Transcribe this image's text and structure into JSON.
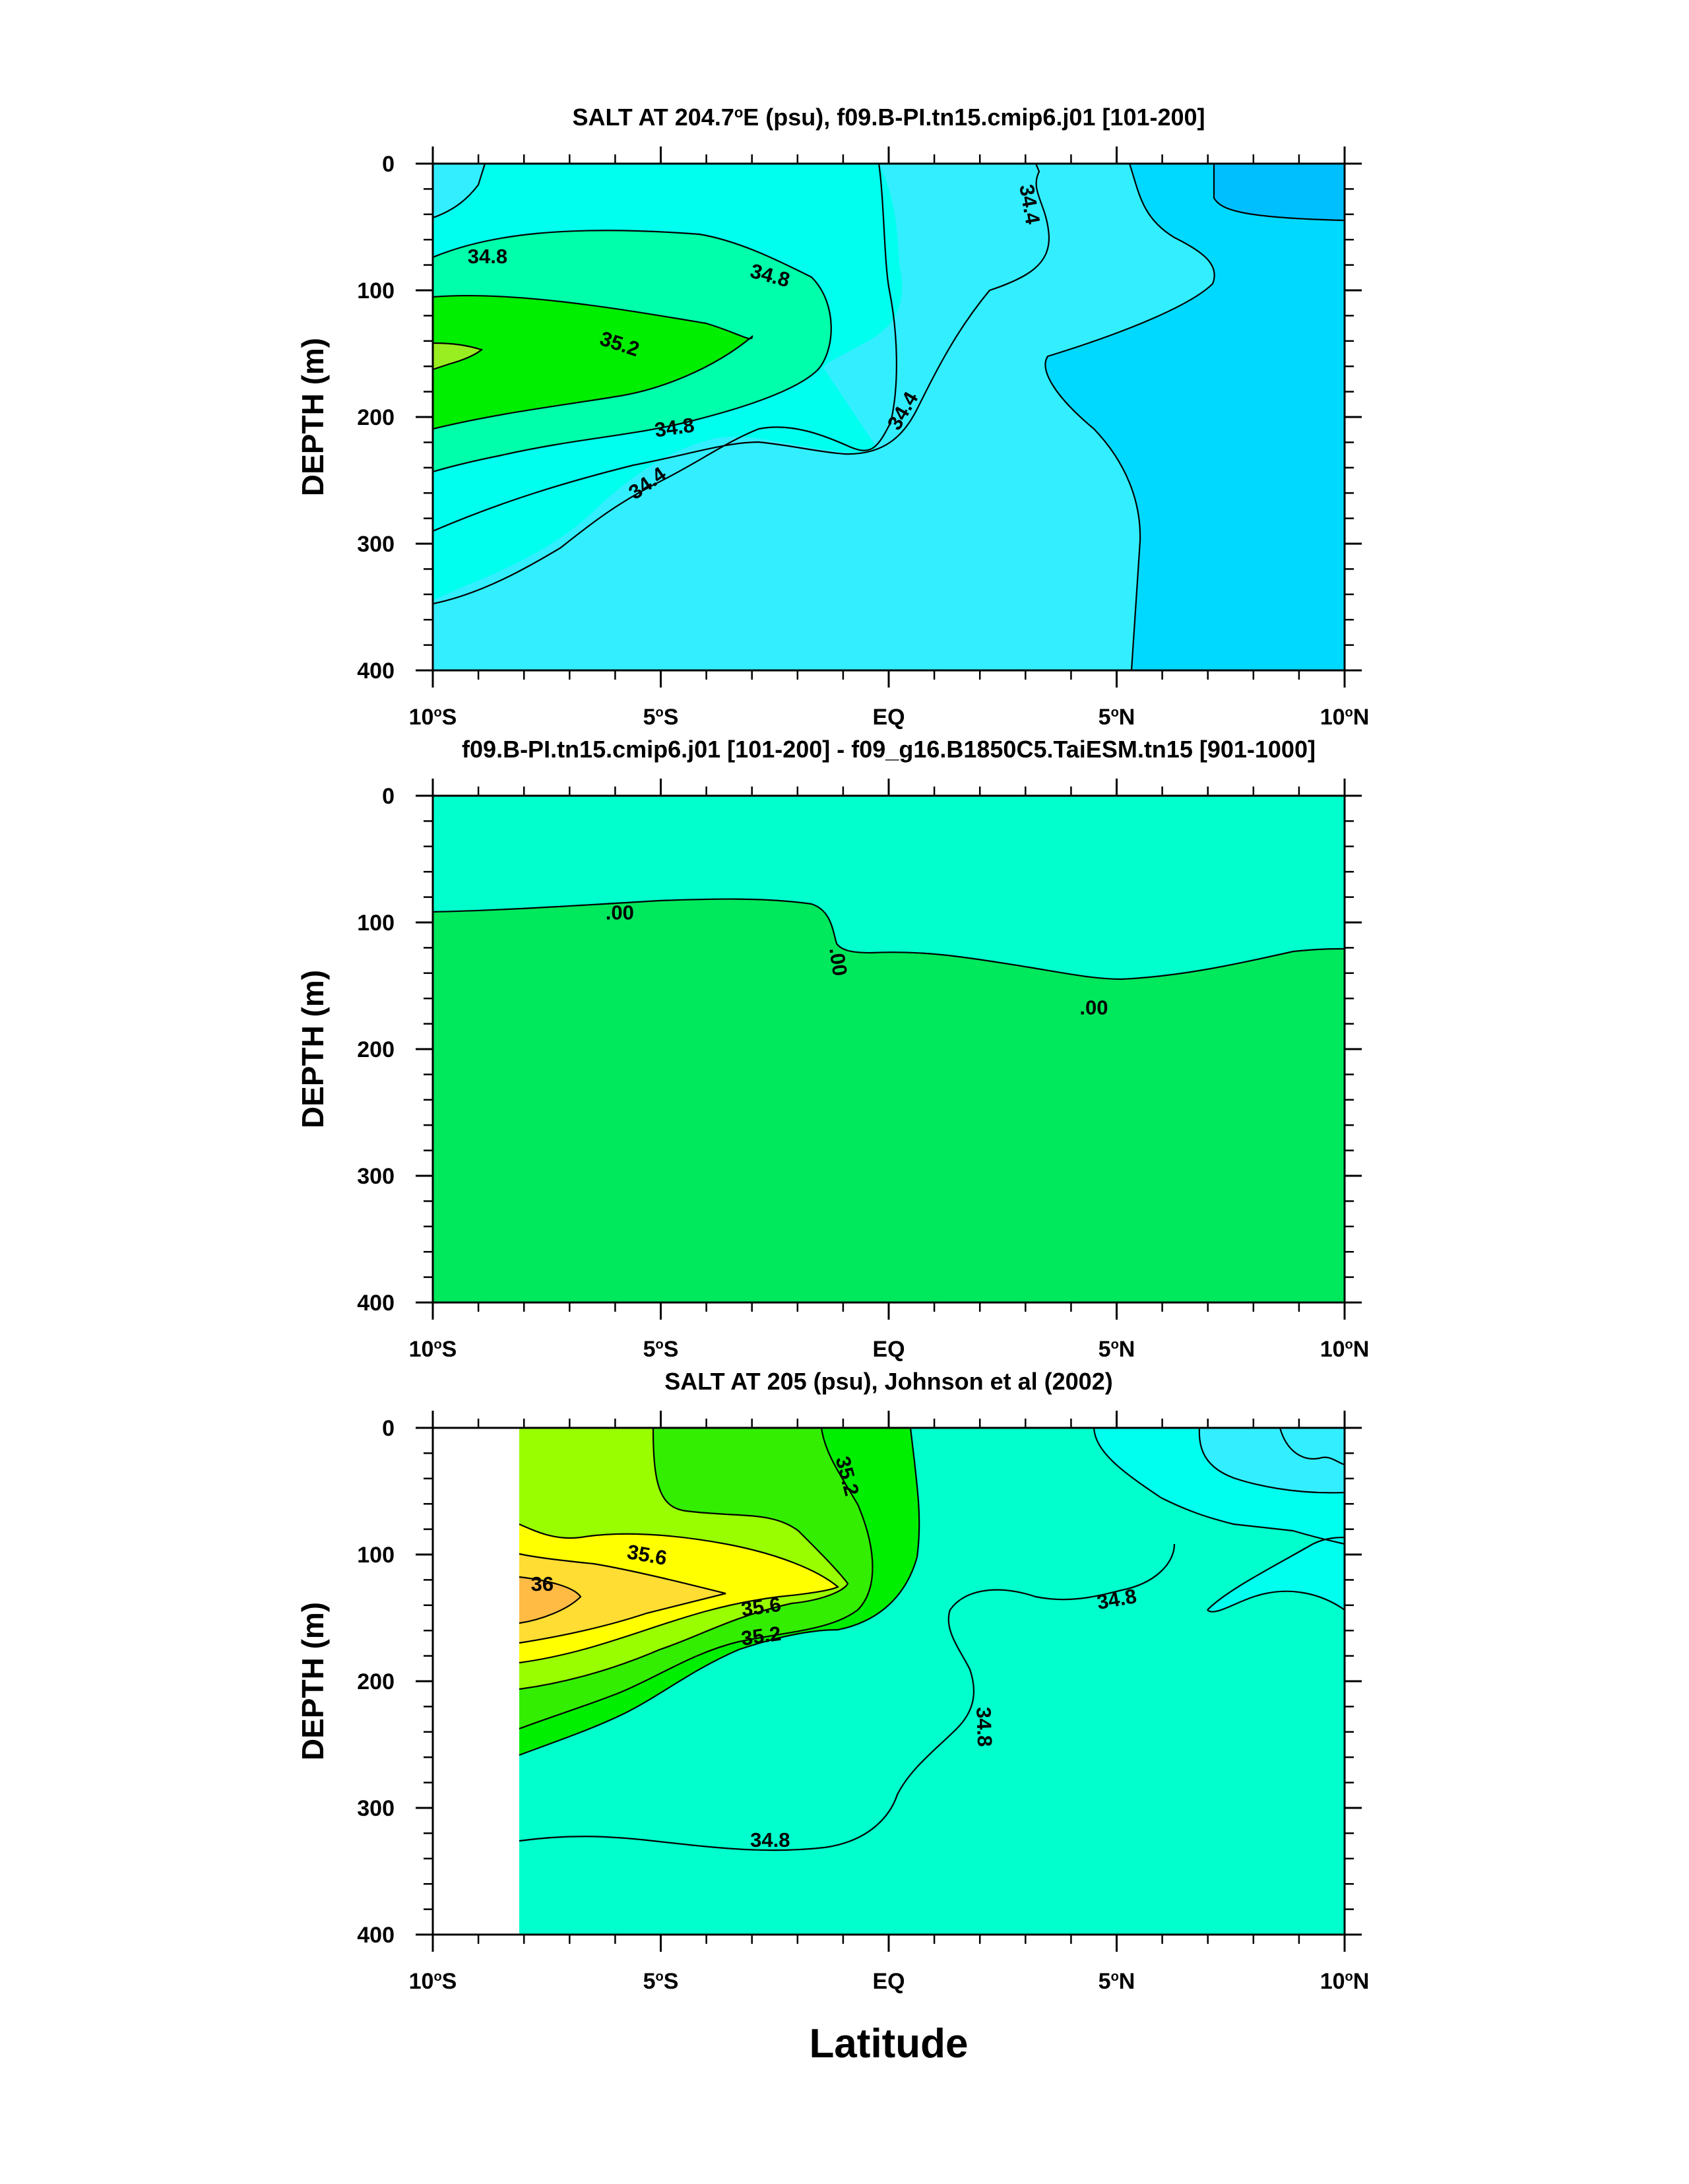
{
  "figure": {
    "xlabel": "Latitude"
  },
  "chart_data": [
    {
      "type": "contour",
      "title": "SALT AT 204.7°E (psu), f09.B-PI.tn15.cmip6.j01 [101-200]",
      "title_parts": {
        "a": "SALT AT 204.7",
        "sup": "o",
        "b": "E (psu), f09.B-PI.tn15.cmip6.j01 [101-200]"
      },
      "xlabel": "",
      "ylabel": "DEPTH (m)",
      "xlim": [
        -10,
        10
      ],
      "ylim": [
        400,
        0
      ],
      "x_ticks": [
        {
          "value": -10,
          "num": "10",
          "deg": "o",
          "hem": "S"
        },
        {
          "value": -5,
          "num": "5",
          "deg": "o",
          "hem": "S"
        },
        {
          "value": 0,
          "num": "EQ",
          "deg": "",
          "hem": ""
        },
        {
          "value": 5,
          "num": "5",
          "deg": "o",
          "hem": "N"
        },
        {
          "value": 10,
          "num": "10",
          "deg": "o",
          "hem": "N"
        }
      ],
      "y_ticks": [
        0,
        100,
        200,
        300,
        400
      ],
      "contour_labels": [
        {
          "text": "34.8",
          "x": -8.8,
          "y": 73,
          "rot": 0
        },
        {
          "text": "34.8",
          "x": -2.6,
          "y": 88,
          "rot": 15
        },
        {
          "text": "35.2",
          "x": -5.9,
          "y": 142,
          "rot": 18
        },
        {
          "text": "34.8",
          "x": -4.7,
          "y": 208,
          "rot": -8
        },
        {
          "text": "34.4",
          "x": -5.3,
          "y": 252,
          "rot": -35
        },
        {
          "text": "34.4",
          "x": 0.3,
          "y": 195,
          "rot": -60
        },
        {
          "text": "34.4",
          "x": 3.1,
          "y": 32,
          "rot": 80
        }
      ],
      "colors": {
        "fresh": "#00bfff",
        "s34_2": "#00d9ff",
        "s34_4": "#33eeff",
        "s34_6": "#00ffee",
        "s34_8": "#00ffaa",
        "s35_2": "#00ee00",
        "s35_4": "#99ee22"
      }
    },
    {
      "type": "contour",
      "title": "f09.B-PI.tn15.cmip6.j01 [101-200] - f09_g16.B1850C5.TaiESM.tn15 [901-1000]",
      "xlabel": "",
      "ylabel": "DEPTH (m)",
      "xlim": [
        -10,
        10
      ],
      "ylim": [
        400,
        0
      ],
      "x_ticks": [
        {
          "value": -10,
          "num": "10",
          "deg": "o",
          "hem": "S"
        },
        {
          "value": -5,
          "num": "5",
          "deg": "o",
          "hem": "S"
        },
        {
          "value": 0,
          "num": "EQ",
          "deg": "",
          "hem": ""
        },
        {
          "value": 5,
          "num": "5",
          "deg": "o",
          "hem": "N"
        },
        {
          "value": 10,
          "num": "10",
          "deg": "o",
          "hem": "N"
        }
      ],
      "y_ticks": [
        0,
        100,
        200,
        300,
        400
      ],
      "contour_labels": [
        {
          "text": ".00",
          "x": -5.9,
          "y": 92,
          "rot": 0
        },
        {
          "text": ".00",
          "x": -1.1,
          "y": 131,
          "rot": 82
        },
        {
          "text": ".00",
          "x": 4.5,
          "y": 167,
          "rot": 0
        }
      ],
      "colors": {
        "positive": "#00ffcc",
        "negative": "#00e85c"
      }
    },
    {
      "type": "contour",
      "title": "SALT AT 205 (psu), Johnson et al (2002)",
      "xlabel": "Latitude",
      "ylabel": "DEPTH (m)",
      "xlim": [
        -10,
        10
      ],
      "ylim": [
        400,
        0
      ],
      "data_xlim": [
        -8,
        10
      ],
      "x_ticks": [
        {
          "value": -10,
          "num": "10",
          "deg": "o",
          "hem": "S"
        },
        {
          "value": -5,
          "num": "5",
          "deg": "o",
          "hem": "S"
        },
        {
          "value": 0,
          "num": "EQ",
          "deg": "",
          "hem": ""
        },
        {
          "value": 5,
          "num": "5",
          "deg": "o",
          "hem": "N"
        },
        {
          "value": 10,
          "num": "10",
          "deg": "o",
          "hem": "N"
        }
      ],
      "y_ticks": [
        0,
        100,
        200,
        300,
        400
      ],
      "contour_labels": [
        {
          "text": "35.6",
          "x": -5.3,
          "y": 100,
          "rot": 10
        },
        {
          "text": "36",
          "x": -7.6,
          "y": 123,
          "rot": 0
        },
        {
          "text": "35.6",
          "x": -2.8,
          "y": 141,
          "rot": -8
        },
        {
          "text": "35.2",
          "x": -2.8,
          "y": 164,
          "rot": -8
        },
        {
          "text": "35.2",
          "x": -0.9,
          "y": 38,
          "rot": 75
        },
        {
          "text": "34.8",
          "x": 5.0,
          "y": 135,
          "rot": -10
        },
        {
          "text": "34.8",
          "x": 2.1,
          "y": 236,
          "rot": 88
        },
        {
          "text": "34.8",
          "x": -2.6,
          "y": 325,
          "rot": 0
        }
      ],
      "colors": {
        "s34_4": "#33eeff",
        "s34_6": "#00ffee",
        "s34_8": "#00ffcc",
        "s35_0": "#00ee00",
        "s35_2": "#33ee00",
        "s35_4": "#99ff00",
        "s35_6": "#ffff00",
        "s35_8": "#ffdd33",
        "s36": "#ffbb44"
      }
    }
  ]
}
